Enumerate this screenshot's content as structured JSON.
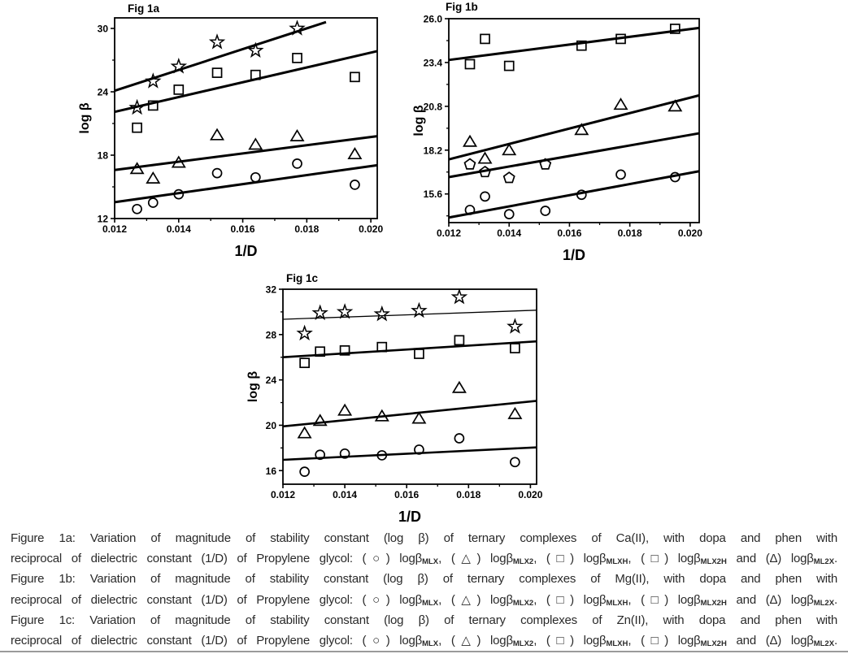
{
  "page": {
    "background": "#ffffff",
    "divider_color": "#9a9a9a",
    "ink_color": "#000000",
    "caption_color": "#2a2a2a"
  },
  "chart_data": [
    {
      "id": "fig1a",
      "type": "scatter",
      "title": "Fig 1a",
      "xlabel": "1/D",
      "ylabel": "log β",
      "xlim": [
        0.012,
        0.0202
      ],
      "ylim": [
        12,
        31
      ],
      "xticks": [
        0.012,
        0.014,
        0.016,
        0.018,
        0.02
      ],
      "xtick_labels": [
        "0.012",
        "0.014",
        "0.016",
        "0.018",
        "0.020"
      ],
      "xminor": [
        0.013,
        0.015,
        0.017,
        0.019
      ],
      "yticks": [
        12,
        18,
        24,
        30
      ],
      "ytick_labels": [
        "12",
        "18",
        "24",
        "30"
      ],
      "yminor": [
        15,
        21,
        27
      ],
      "grid": false,
      "legend": "none",
      "fit_width": 3,
      "series": [
        {
          "marker": "circle",
          "x": [
            0.0127,
            0.0132,
            0.014,
            0.0152,
            0.0164,
            0.0177,
            0.0195
          ],
          "y": [
            12.9,
            13.5,
            14.3,
            16.3,
            15.9,
            17.2,
            15.2
          ],
          "fit": [
            [
              0.012,
              13.55
            ],
            [
              0.0202,
              17.05
            ]
          ]
        },
        {
          "marker": "triangle",
          "x": [
            0.0127,
            0.0132,
            0.014,
            0.0152,
            0.0164,
            0.0177,
            0.0195
          ],
          "y": [
            16.7,
            15.8,
            17.3,
            19.9,
            19.0,
            19.8,
            18.1
          ],
          "fit": [
            [
              0.012,
              16.6
            ],
            [
              0.0202,
              19.8
            ]
          ]
        },
        {
          "marker": "square",
          "x": [
            0.0127,
            0.0132,
            0.014,
            0.0152,
            0.0164,
            0.0177,
            0.0195
          ],
          "y": [
            20.6,
            22.7,
            24.2,
            25.8,
            25.6,
            27.2,
            25.4
          ],
          "fit": [
            [
              0.012,
              22.1
            ],
            [
              0.0202,
              27.85
            ]
          ]
        },
        {
          "marker": "star",
          "x": [
            0.0127,
            0.0132,
            0.014,
            0.0152,
            0.0164,
            0.0177
          ],
          "y": [
            22.5,
            25.0,
            26.4,
            28.7,
            27.9,
            30.0
          ],
          "fit": [
            [
              0.012,
              24.1
            ],
            [
              0.0186,
              30.6
            ]
          ]
        }
      ]
    },
    {
      "id": "fig1b",
      "type": "scatter",
      "title": "Fig 1b",
      "xlabel": "1/D",
      "ylabel": "log β",
      "xlim": [
        0.012,
        0.0203
      ],
      "ylim": [
        13.9,
        26.0
      ],
      "xticks": [
        0.012,
        0.014,
        0.016,
        0.018,
        0.02
      ],
      "xtick_labels": [
        "0.012",
        "0.014",
        "0.016",
        "0.018",
        "0.020"
      ],
      "xminor": [
        0.013,
        0.015,
        0.017,
        0.019
      ],
      "yticks": [
        15.6,
        18.2,
        20.8,
        23.4,
        26.0
      ],
      "ytick_labels": [
        "15.6",
        "18.2",
        "20.8",
        "23.4",
        "26.0"
      ],
      "yminor": [
        14.3,
        16.9,
        19.5,
        22.1,
        24.7
      ],
      "grid": false,
      "legend": "none",
      "fit_width": 3,
      "series": [
        {
          "marker": "circle",
          "x": [
            0.0127,
            0.0132,
            0.014,
            0.0152,
            0.0164,
            0.0177,
            0.0195
          ],
          "y": [
            14.65,
            15.45,
            14.4,
            14.6,
            15.55,
            16.75,
            16.6
          ],
          "fit": [
            [
              0.012,
              14.2
            ],
            [
              0.0203,
              16.95
            ]
          ]
        },
        {
          "marker": "pentagon",
          "x": [
            0.0127,
            0.0132,
            0.014,
            0.0152
          ],
          "y": [
            17.35,
            16.9,
            16.55,
            17.35
          ],
          "fit": [
            [
              0.012,
              16.6
            ],
            [
              0.0203,
              19.2
            ]
          ]
        },
        {
          "marker": "triangle",
          "x": [
            0.0127,
            0.0132,
            0.014,
            0.0164,
            0.0177,
            0.0195
          ],
          "y": [
            18.7,
            17.7,
            18.2,
            19.4,
            20.9,
            20.8
          ],
          "fit": [
            [
              0.012,
              17.65
            ],
            [
              0.0203,
              21.45
            ]
          ]
        },
        {
          "marker": "square",
          "x": [
            0.0127,
            0.0132,
            0.014,
            0.0164,
            0.0177,
            0.0195
          ],
          "y": [
            23.3,
            24.8,
            23.2,
            24.4,
            24.8,
            25.4
          ],
          "fit": [
            [
              0.012,
              23.55
            ],
            [
              0.0203,
              25.45
            ]
          ]
        }
      ]
    },
    {
      "id": "fig1c",
      "type": "scatter",
      "title": "Fig 1c",
      "xlabel": "1/D",
      "ylabel": "log β",
      "xlim": [
        0.012,
        0.0202
      ],
      "ylim": [
        14.8,
        32
      ],
      "xticks": [
        0.012,
        0.014,
        0.016,
        0.018,
        0.02
      ],
      "xtick_labels": [
        "0.012",
        "0.014",
        "0.016",
        "0.018",
        "0.020"
      ],
      "xminor": [
        0.013,
        0.015,
        0.017,
        0.019
      ],
      "yticks": [
        16,
        20,
        24,
        28,
        32
      ],
      "ytick_labels": [
        "16",
        "20",
        "24",
        "28",
        "32"
      ],
      "yminor": [
        18,
        22,
        26,
        30
      ],
      "grid": false,
      "legend": "none",
      "fit_width": 2.6,
      "series": [
        {
          "marker": "circle",
          "x": [
            0.0127,
            0.0132,
            0.014,
            0.0152,
            0.0164,
            0.0177,
            0.0195
          ],
          "y": [
            15.9,
            17.4,
            17.5,
            17.35,
            17.85,
            18.85,
            16.75
          ],
          "fit": [
            [
              0.012,
              16.95
            ],
            [
              0.0202,
              18.05
            ]
          ]
        },
        {
          "marker": "triangle",
          "x": [
            0.0127,
            0.0132,
            0.014,
            0.0152,
            0.0164,
            0.0177,
            0.0195
          ],
          "y": [
            19.3,
            20.4,
            21.3,
            20.8,
            20.6,
            23.3,
            21.0
          ],
          "fit": [
            [
              0.012,
              19.9
            ],
            [
              0.0202,
              22.15
            ]
          ]
        },
        {
          "marker": "square",
          "x": [
            0.0127,
            0.0132,
            0.014,
            0.0152,
            0.0164,
            0.0177,
            0.0195
          ],
          "y": [
            25.5,
            26.5,
            26.6,
            26.9,
            26.3,
            27.5,
            26.8
          ],
          "fit": [
            [
              0.012,
              26.0
            ],
            [
              0.0202,
              27.4
            ]
          ]
        },
        {
          "marker": "star",
          "x": [
            0.0127,
            0.0132,
            0.014,
            0.0152,
            0.0164,
            0.0177,
            0.0195
          ],
          "y": [
            28.1,
            29.9,
            30.0,
            29.8,
            30.1,
            31.3,
            28.7
          ],
          "fit": [
            [
              0.012,
              29.35
            ],
            [
              0.0202,
              30.15
            ]
          ],
          "fit_width": 1.3
        }
      ]
    }
  ],
  "caption": {
    "lines": [
      {
        "parts": [
          {
            "t": "Figure 1a: Variation of magnitude of stability constant (log β) of ternary complexes of Ca(II), with dopa and phen with"
          }
        ]
      },
      {
        "parts": [
          {
            "t": "reciprocal of  dielectric constant (1/D) of Propylene glycol: (○) logβ"
          },
          {
            "s": "MLX"
          },
          {
            "t": ", (△) logβ"
          },
          {
            "s": "MLX2"
          },
          {
            "t": ", (□) logβ"
          },
          {
            "s": "MLXH"
          },
          {
            "t": ", (□) logβ"
          },
          {
            "s": "MLX2H"
          },
          {
            "t": " and (Δ) logβ"
          },
          {
            "s": "ML2X"
          },
          {
            "t": "."
          }
        ]
      },
      {
        "parts": [
          {
            "t": "Figure 1b: Variation of magnitude of stability constant (log β) of ternary complexes of Mg(II), with dopa and phen with"
          }
        ]
      },
      {
        "parts": [
          {
            "t": "reciprocal of  dielectric constant (1/D) of Propylene glycol: (○) logβ"
          },
          {
            "s": "MLX"
          },
          {
            "t": ", (△) logβ"
          },
          {
            "s": "MLX2"
          },
          {
            "t": ", (□) logβ"
          },
          {
            "s": "MLXH"
          },
          {
            "t": ", (□) logβ"
          },
          {
            "s": "MLX2H"
          },
          {
            "t": " and (Δ) logβ"
          },
          {
            "s": "ML2X"
          },
          {
            "t": "."
          }
        ]
      },
      {
        "parts": [
          {
            "t": "Figure 1c: Variation of magnitude of stability constant (log β) of ternary complexes of Zn(II), with dopa and phen with"
          }
        ]
      },
      {
        "parts": [
          {
            "t": "reciprocal of  dielectric constant (1/D) of Propylene glycol: (○) logβ"
          },
          {
            "s": "MLX"
          },
          {
            "t": ", (△) logβ"
          },
          {
            "s": "MLX2"
          },
          {
            "t": ", (□) logβ"
          },
          {
            "s": "MLXH"
          },
          {
            "t": ", (□) logβ"
          },
          {
            "s": "MLX2H"
          },
          {
            "t": " and (Δ) logβ"
          },
          {
            "s": "ML2X"
          },
          {
            "t": "."
          }
        ]
      }
    ]
  }
}
